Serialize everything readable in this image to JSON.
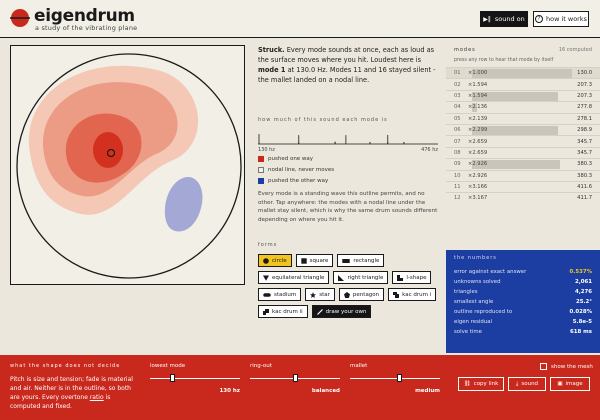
{
  "header": {
    "title": "eigendrum",
    "subtitle": "a study of the vibrating plane",
    "sound_button": "sound on",
    "how_button": "how it works"
  },
  "description": {
    "lead": "Struck.",
    "text1": " Every mode sounds at once, each as loud as the surface moves where you hit. Loudest here is ",
    "bold_mode": "mode 1",
    "text2": " at 130.0 Hz. Modes 11 and 16 stayed silent - the mallet landed on a nodal line."
  },
  "spectrum": {
    "label": "how much of this sound each mode is",
    "min_label": "130 hz",
    "max_label": "476 hz"
  },
  "legend": {
    "pushed_one": "pushed one way",
    "nodal": "nodal line, never moves",
    "pushed_other": "pushed the other way"
  },
  "mode_info": "Every mode is a standing wave this outline permits, and no other. Tap anywhere: the modes with a nodal line under the mallet stay silent, which is why the same drum sounds different depending on where you hit it.",
  "forms": {
    "label": "forms",
    "rows": [
      [
        {
          "label": "circle",
          "icon": "circle-icon",
          "active": true
        },
        {
          "label": "square",
          "icon": "square-icon"
        },
        {
          "label": "rectangle",
          "icon": "rectangle-icon"
        }
      ],
      [
        {
          "label": "equilateral triangle",
          "icon": "triangle-icon"
        },
        {
          "label": "right triangle",
          "icon": "right-triangle-icon"
        },
        {
          "label": "l-shape",
          "icon": "l-shape-icon"
        }
      ],
      [
        {
          "label": "stadium",
          "icon": "stadium-icon"
        },
        {
          "label": "star",
          "icon": "star-icon"
        },
        {
          "label": "pentagon",
          "icon": "pentagon-icon"
        },
        {
          "label": "kac drum i",
          "icon": "kac-drum-icon"
        }
      ],
      [
        {
          "label": "kac drum ii",
          "icon": "kac-drum-icon"
        },
        {
          "label": "draw your own",
          "icon": "pencil-icon",
          "dark": true
        }
      ]
    ]
  },
  "modes": {
    "title": "modes",
    "count": "16 computed",
    "hint": "press any row to hear that mode by itself",
    "rows": [
      {
        "n": "01",
        "ratio": "×1.000",
        "hz": "130.0",
        "level": 1.0,
        "selected": true
      },
      {
        "n": "02",
        "ratio": "×1.594",
        "hz": "207.3",
        "level": 0.0
      },
      {
        "n": "03",
        "ratio": "×1.594",
        "hz": "207.3",
        "level": 0.86
      },
      {
        "n": "04",
        "ratio": "×2.136",
        "hz": "277.8",
        "level": 0.05
      },
      {
        "n": "05",
        "ratio": "×2.139",
        "hz": "278.1",
        "level": 0.0
      },
      {
        "n": "06",
        "ratio": "×2.299",
        "hz": "298.9",
        "level": 0.86
      },
      {
        "n": "07",
        "ratio": "×2.659",
        "hz": "345.7",
        "level": 0.0
      },
      {
        "n": "08",
        "ratio": "×2.659",
        "hz": "345.7",
        "level": 0.0
      },
      {
        "n": "09",
        "ratio": "×2.926",
        "hz": "380.3",
        "level": 0.88
      },
      {
        "n": "10",
        "ratio": "×2.926",
        "hz": "380.3",
        "level": 0.0
      },
      {
        "n": "11",
        "ratio": "×3.166",
        "hz": "411.6",
        "level": 0.0
      },
      {
        "n": "12",
        "ratio": "×3.167",
        "hz": "411.7",
        "level": 0.0
      }
    ]
  },
  "numbers": {
    "title": "the numbers",
    "rows": [
      {
        "label": "error against exact answer",
        "value": "0.537%",
        "accent": true
      },
      {
        "label": "unknowns solved",
        "value": "2,061"
      },
      {
        "label": "triangles",
        "value": "4,276"
      },
      {
        "label": "smallest angle",
        "value": "25.2°"
      },
      {
        "label": "outline reproduced to",
        "value": "0.028%"
      },
      {
        "label": "eigen residual",
        "value": "5.8e-5"
      },
      {
        "label": "solve time",
        "value": "618 ms"
      }
    ]
  },
  "footer": {
    "title": "what the shape does not decide",
    "text_a": "Pitch is size and tension; fade is material and air. Neither is in the outline, so both are yours. Every overtone ",
    "text_ratio": "ratio",
    "text_b": " is computed and fixed.",
    "sliders": [
      {
        "label": "lowest mode",
        "value": "130 hz",
        "position": 0.25
      },
      {
        "label": "ring-out",
        "value": "balanced",
        "position": 0.5
      },
      {
        "label": "mallet",
        "value": "medium",
        "position": 0.55
      }
    ],
    "mesh_label": "show the mesh",
    "copy_link": "copy link",
    "sound": "sound",
    "image": "image"
  },
  "colors": {
    "accent_red": "#c8291c",
    "accent_blue": "#1c3ea3",
    "accent_yellow": "#f2c420"
  }
}
